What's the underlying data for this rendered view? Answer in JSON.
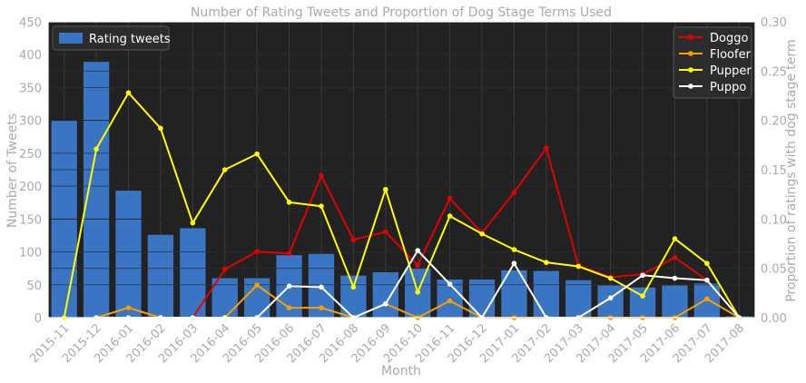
{
  "chart_data": {
    "type": "bar+line",
    "title": "Number of Rating Tweets and Proportion of Dog Stage Terms Used",
    "xlabel": "Month",
    "ylabel_left": "Number of Tweets",
    "ylabel_right": "Proportion of ratings with dog stage term",
    "categories": [
      "2015-11",
      "2015-12",
      "2016-01",
      "2016-02",
      "2016-03",
      "2016-04",
      "2016-05",
      "2016-06",
      "2016-07",
      "2016-08",
      "2016-09",
      "2016-10",
      "2016-11",
      "2016-12",
      "2017-01",
      "2017-02",
      "2017-03",
      "2017-04",
      "2017-05",
      "2017-06",
      "2017-07",
      "2017-08"
    ],
    "ylim_left": [
      0,
      450
    ],
    "yticks_left": [
      "0",
      "50",
      "100",
      "150",
      "200",
      "250",
      "300",
      "350",
      "400",
      "450"
    ],
    "ylim_right": [
      0,
      0.3
    ],
    "yticks_right": [
      "0.00",
      "0.05",
      "0.10",
      "0.15",
      "0.20",
      "0.25",
      "0.30"
    ],
    "grid": true,
    "bar_series": {
      "name": "Rating tweets",
      "color": "#3a75c4",
      "values": [
        300,
        389,
        193,
        126,
        136,
        60,
        60,
        95,
        97,
        64,
        69,
        75,
        58,
        58,
        72,
        71,
        57,
        49,
        46,
        49,
        52,
        2
      ]
    },
    "line_series": [
      {
        "name": "Doggo",
        "color": "#e00000",
        "values": [
          null,
          null,
          null,
          null,
          0.0,
          0.049,
          0.067,
          0.065,
          0.144,
          0.079,
          0.087,
          0.053,
          0.121,
          0.086,
          0.127,
          0.172,
          0.053,
          0.041,
          0.044,
          0.061,
          0.038,
          0.0
        ]
      },
      {
        "name": "Floofer",
        "color": "#f5a000",
        "values": [
          null,
          0.0,
          0.01,
          0.0,
          0.0,
          0.0,
          0.033,
          0.01,
          0.01,
          0.0,
          0.014,
          0.0,
          0.017,
          0.0,
          0.0,
          0.0,
          0.0,
          0.0,
          0.0,
          0.0,
          0.019,
          0.0
        ]
      },
      {
        "name": "Pupper",
        "color": "#ffff00",
        "values": [
          0.0,
          0.171,
          0.228,
          0.192,
          0.096,
          0.15,
          0.166,
          0.117,
          0.113,
          0.031,
          0.13,
          0.026,
          0.103,
          0.085,
          0.069,
          0.056,
          0.052,
          0.04,
          0.022,
          0.08,
          0.055,
          0.0
        ]
      },
      {
        "name": "Puppo",
        "color": "#ffffff",
        "values": [
          null,
          0.0,
          0.0,
          0.0,
          0.0,
          0.0,
          0.0,
          0.032,
          0.031,
          0.0,
          0.014,
          0.068,
          0.034,
          0.0,
          0.055,
          0.0,
          0.0,
          0.02,
          0.043,
          0.04,
          0.038,
          0.0
        ]
      }
    ],
    "legend_left_placement": "top-left",
    "legend_right_placement": "top-right",
    "background_color": "#222222",
    "grid_color": "#3a3a3a",
    "text_color": "#aaaaaa"
  }
}
